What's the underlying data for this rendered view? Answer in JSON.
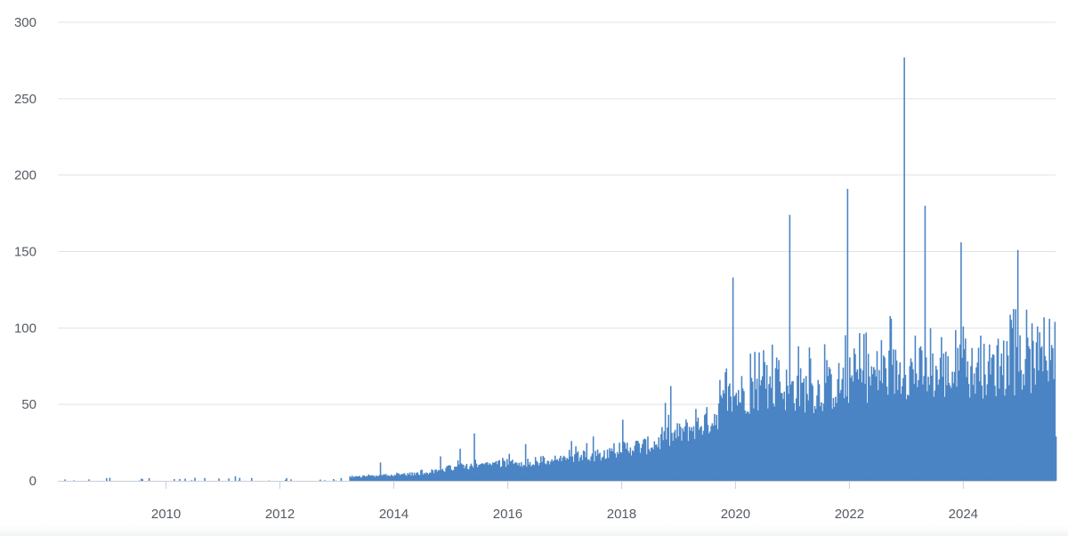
{
  "chart_data": {
    "type": "bar",
    "title": "",
    "xlabel": "",
    "ylabel": "",
    "x_range": [
      "2008-02",
      "2025-08"
    ],
    "ylim": [
      0,
      300
    ],
    "y_ticks": [
      "0",
      "50",
      "100",
      "150",
      "200",
      "250",
      "300"
    ],
    "x_ticks": [
      {
        "label": "2010",
        "value": 2010.0
      },
      {
        "label": "2012",
        "value": 2012.0
      },
      {
        "label": "2014",
        "value": 2014.0
      },
      {
        "label": "2016",
        "value": 2016.0
      },
      {
        "label": "2018",
        "value": 2018.0
      },
      {
        "label": "2020",
        "value": 2020.0
      },
      {
        "label": "2022",
        "value": 2022.0
      },
      {
        "label": "2024",
        "value": 2024.0
      }
    ],
    "grid": "horizontal",
    "legend": "none",
    "bar_color": "#4a84c4",
    "series": [
      {
        "anchors": [
          [
            2008.1,
            0
          ],
          [
            2009.9,
            0.5
          ],
          [
            2011.9,
            1
          ],
          [
            2013.0,
            2
          ],
          [
            2013.5,
            3
          ],
          [
            2014.0,
            4
          ],
          [
            2014.5,
            5
          ],
          [
            2015.0,
            9
          ],
          [
            2015.5,
            11
          ],
          [
            2016.0,
            12
          ],
          [
            2016.5,
            13
          ],
          [
            2017.0,
            15
          ],
          [
            2017.5,
            17
          ],
          [
            2018.0,
            22
          ],
          [
            2018.5,
            24
          ],
          [
            2019.0,
            32
          ],
          [
            2019.6,
            42
          ],
          [
            2019.85,
            55
          ],
          [
            2020.0,
            58
          ],
          [
            2020.5,
            63
          ],
          [
            2021.0,
            62
          ],
          [
            2021.5,
            60
          ],
          [
            2022.0,
            68
          ],
          [
            2022.5,
            72
          ],
          [
            2023.0,
            74
          ],
          [
            2023.5,
            72
          ],
          [
            2024.0,
            73
          ],
          [
            2024.5,
            75
          ],
          [
            2025.0,
            76
          ],
          [
            2025.35,
            80
          ],
          [
            2025.55,
            86
          ]
        ],
        "spikes": [
          [
            2009.0,
            2
          ],
          [
            2010.5,
            2
          ],
          [
            2011.2,
            3
          ],
          [
            2013.75,
            12
          ],
          [
            2014.8,
            16
          ],
          [
            2015.15,
            21
          ],
          [
            2015.4,
            31
          ],
          [
            2016.3,
            24
          ],
          [
            2017.1,
            26
          ],
          [
            2017.5,
            29
          ],
          [
            2018.0,
            40
          ],
          [
            2018.75,
            51
          ],
          [
            2018.85,
            62
          ],
          [
            2019.3,
            47
          ],
          [
            2019.72,
            66
          ],
          [
            2019.95,
            133
          ],
          [
            2020.4,
            84
          ],
          [
            2020.75,
            79
          ],
          [
            2020.95,
            174
          ],
          [
            2021.1,
            88
          ],
          [
            2021.3,
            80
          ],
          [
            2021.6,
            79
          ],
          [
            2021.95,
            191
          ],
          [
            2022.25,
            96
          ],
          [
            2022.55,
            92
          ],
          [
            2022.95,
            277
          ],
          [
            2023.15,
            95
          ],
          [
            2023.32,
            180
          ],
          [
            2023.6,
            94
          ],
          [
            2023.95,
            156
          ],
          [
            2024.3,
            95
          ],
          [
            2024.6,
            93
          ],
          [
            2024.85,
            100
          ],
          [
            2024.95,
            151
          ],
          [
            2025.2,
            103
          ],
          [
            2025.3,
            101
          ],
          [
            2025.4,
            107
          ],
          [
            2025.5,
            106
          ],
          [
            2025.6,
            104
          ],
          [
            2025.65,
            29
          ]
        ]
      }
    ]
  }
}
